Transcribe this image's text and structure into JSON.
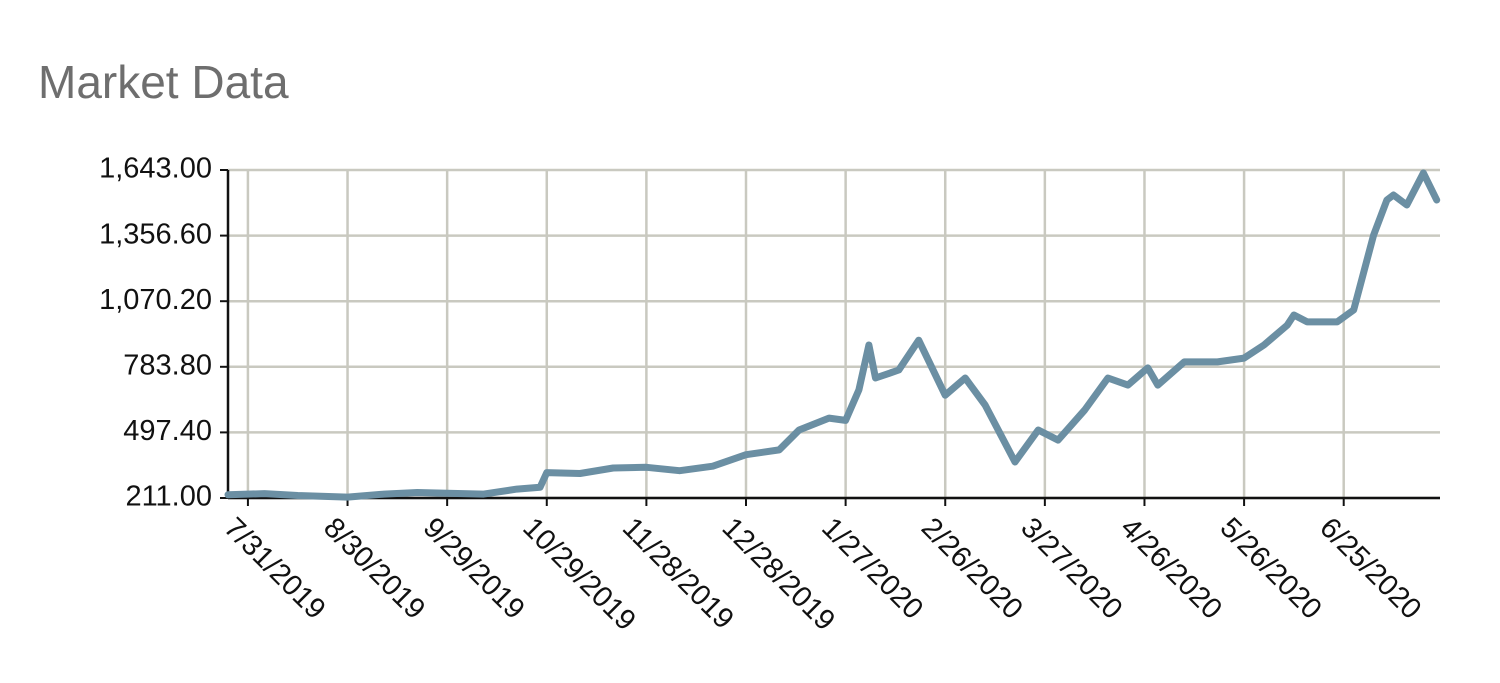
{
  "chart_data": {
    "type": "line",
    "title": "Market Data",
    "x": [
      "7/25/2019",
      "8/5/2019",
      "8/15/2019",
      "8/30/2019",
      "9/10/2019",
      "9/20/2019",
      "9/29/2019",
      "10/10/2019",
      "10/20/2019",
      "10/27/2019",
      "10/29/2019",
      "11/8/2019",
      "11/18/2019",
      "11/28/2019",
      "12/8/2019",
      "12/18/2019",
      "12/28/2019",
      "1/7/2020",
      "1/13/2020",
      "1/22/2020",
      "1/27/2020",
      "1/31/2020",
      "2/3/2020",
      "2/5/2020",
      "2/12/2020",
      "2/18/2020",
      "2/26/2020",
      "3/3/2020",
      "3/9/2020",
      "3/18/2020",
      "3/25/2020",
      "3/31/2020",
      "4/8/2020",
      "4/15/2020",
      "4/21/2020",
      "4/27/2020",
      "4/30/2020",
      "5/8/2020",
      "5/18/2020",
      "5/26/2020",
      "6/1/2020",
      "6/8/2020",
      "6/10/2020",
      "6/14/2020",
      "6/23/2020",
      "6/28/2020",
      "7/4/2020",
      "7/8/2020",
      "7/10/2020",
      "7/14/2020",
      "7/19/2020",
      "7/23/2020"
    ],
    "series": [
      {
        "name": "Market Data",
        "color": "#6b8fa3",
        "values": [
          225,
          230,
          222,
          215,
          228,
          235,
          232,
          228,
          250,
          258,
          322,
          318,
          342,
          345,
          330,
          350,
          400,
          421,
          508,
          560,
          550,
          683,
          879,
          735,
          770,
          900,
          660,
          735,
          617,
          368,
          508,
          464,
          595,
          735,
          704,
          779,
          704,
          805,
          805,
          822,
          879,
          966,
          1010,
          980,
          980,
          1032,
          1359,
          1512,
          1534,
          1490,
          1630,
          1512
        ]
      }
    ],
    "xlim": [
      "7/25/2019",
      "7/24/2020"
    ],
    "xticks": [
      "7/31/2019",
      "8/30/2019",
      "9/29/2019",
      "10/29/2019",
      "11/28/2019",
      "12/28/2019",
      "1/27/2020",
      "2/26/2020",
      "3/27/2020",
      "4/26/2020",
      "5/26/2020",
      "6/25/2020"
    ],
    "ylim": [
      211,
      1643
    ],
    "yticks": [
      {
        "value": 211,
        "label": "211.00"
      },
      {
        "value": 497.4,
        "label": "497.40"
      },
      {
        "value": 783.8,
        "label": "783.80"
      },
      {
        "value": 1070.2,
        "label": "1,070.20"
      },
      {
        "value": 1356.6,
        "label": "1,356.60"
      },
      {
        "value": 1643,
        "label": "1,643.00"
      }
    ],
    "grid": true
  }
}
